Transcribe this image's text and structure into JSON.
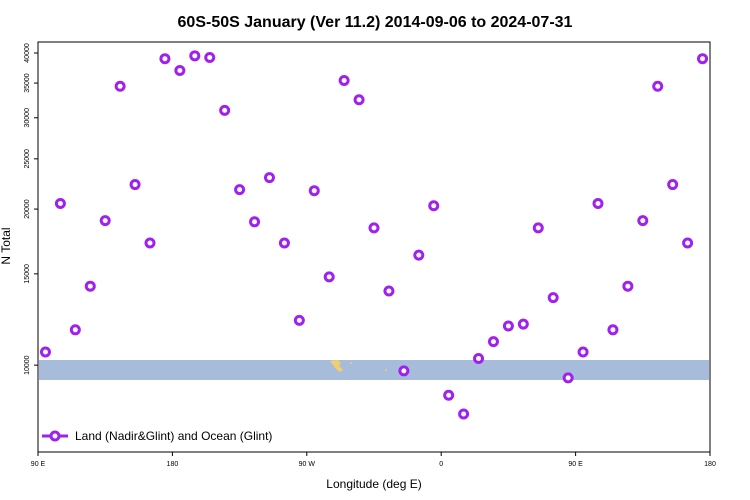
{
  "chart_data": {
    "type": "scatter",
    "title": "60S-50S January (Ver 11.2)   2014-09-06 to 2024-07-31",
    "xlabel": "Longitude (deg E)",
    "ylabel": "N Total",
    "y_scale": "log",
    "xlim": [
      -90,
      180
    ],
    "ylim": [
      6800,
      42000
    ],
    "x_ticks": [
      {
        "value": -90,
        "label": "90 E"
      },
      {
        "value": -36,
        "label": "180"
      },
      {
        "value": 18,
        "label": "90 W"
      },
      {
        "value": 72,
        "label": "0"
      },
      {
        "value": 126,
        "label": "90 E"
      },
      {
        "value": 180,
        "label": "180"
      }
    ],
    "y_ticks": [
      10000,
      15000,
      20000,
      25000,
      30000,
      35000,
      40000
    ],
    "grid": false,
    "legend_position": "bottom-left",
    "series": [
      {
        "name": "Land (Nadir&Glint) and Ocean (Glint)",
        "color": "#a020f0",
        "marker": "open-circle",
        "x": [
          -87,
          -81,
          -75,
          -69,
          -63,
          -57,
          -51,
          -45,
          -39,
          -33,
          -27,
          -21,
          -15,
          -9,
          -3,
          3,
          9,
          15,
          21,
          27,
          33,
          39,
          45,
          51,
          57,
          63,
          69,
          75,
          81,
          87,
          93,
          99,
          105,
          111,
          117,
          123,
          129,
          135,
          141,
          147,
          153,
          159,
          165,
          171,
          177
        ],
        "y": [
          10600,
          20500,
          11700,
          14200,
          19000,
          34500,
          22300,
          17200,
          39000,
          37000,
          39500,
          39200,
          31000,
          21800,
          18900,
          23000,
          17200,
          12200,
          21700,
          14800,
          35400,
          32500,
          18400,
          13900,
          9750,
          16300,
          20300,
          8750,
          8050,
          10300,
          11100,
          11900,
          12000,
          18400,
          13500,
          9450,
          10600,
          20500,
          11700,
          14200,
          19000,
          34500,
          22300,
          17200,
          39000
        ]
      }
    ]
  }
}
